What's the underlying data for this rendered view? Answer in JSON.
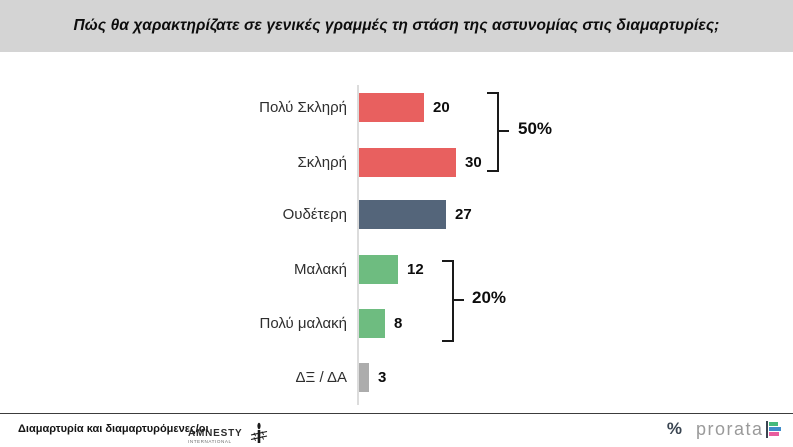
{
  "title": "Πώς θα χαρακτηρίζατε σε γενικές γραμμές τη στάση της αστυνομίας στις διαμαρτυρίες;",
  "chart_data": {
    "type": "bar",
    "orientation": "horizontal",
    "categories": [
      "Πολύ Σκληρή",
      "Σκληρή",
      "Ουδέτερη",
      "Μαλακή",
      "Πολύ μαλακή",
      "ΔΞ / ΔΑ"
    ],
    "values": [
      20,
      30,
      27,
      12,
      8,
      3
    ],
    "bar_colors": [
      "#e8605f",
      "#e8605f",
      "#54657a",
      "#6ebc80",
      "#6ebc80",
      "#acacac"
    ],
    "xlim": [
      0,
      35
    ],
    "grid": false,
    "legend": false,
    "annotations": [
      {
        "label": "50%",
        "covers": [
          "Πολύ Σκληρή",
          "Σκληρή"
        ],
        "sum_of": [
          20,
          30
        ]
      },
      {
        "label": "20%",
        "covers": [
          "Μαλακή",
          "Πολύ μαλακή"
        ],
        "sum_of": [
          12,
          8
        ]
      }
    ]
  },
  "footer": {
    "source_label": "Διαμαρτυρία και διαμαρτυρόμενες/οι",
    "amnesty_line1": "AMNESTY",
    "amnesty_line2": "INTERNATIONAL",
    "prorata_percent": "%",
    "prorata_name": "prorata"
  },
  "colors": {
    "title_banner_bg": "#d4d4d4",
    "negative_red": "#e8605f",
    "neutral_slate": "#54657a",
    "positive_green": "#6ebc80",
    "dk_na_gray": "#acacac",
    "axis_gray": "#dcdcdc",
    "prorata_green": "#44b97c",
    "prorata_blue": "#3f8cca",
    "prorata_pink": "#e85d9e"
  }
}
